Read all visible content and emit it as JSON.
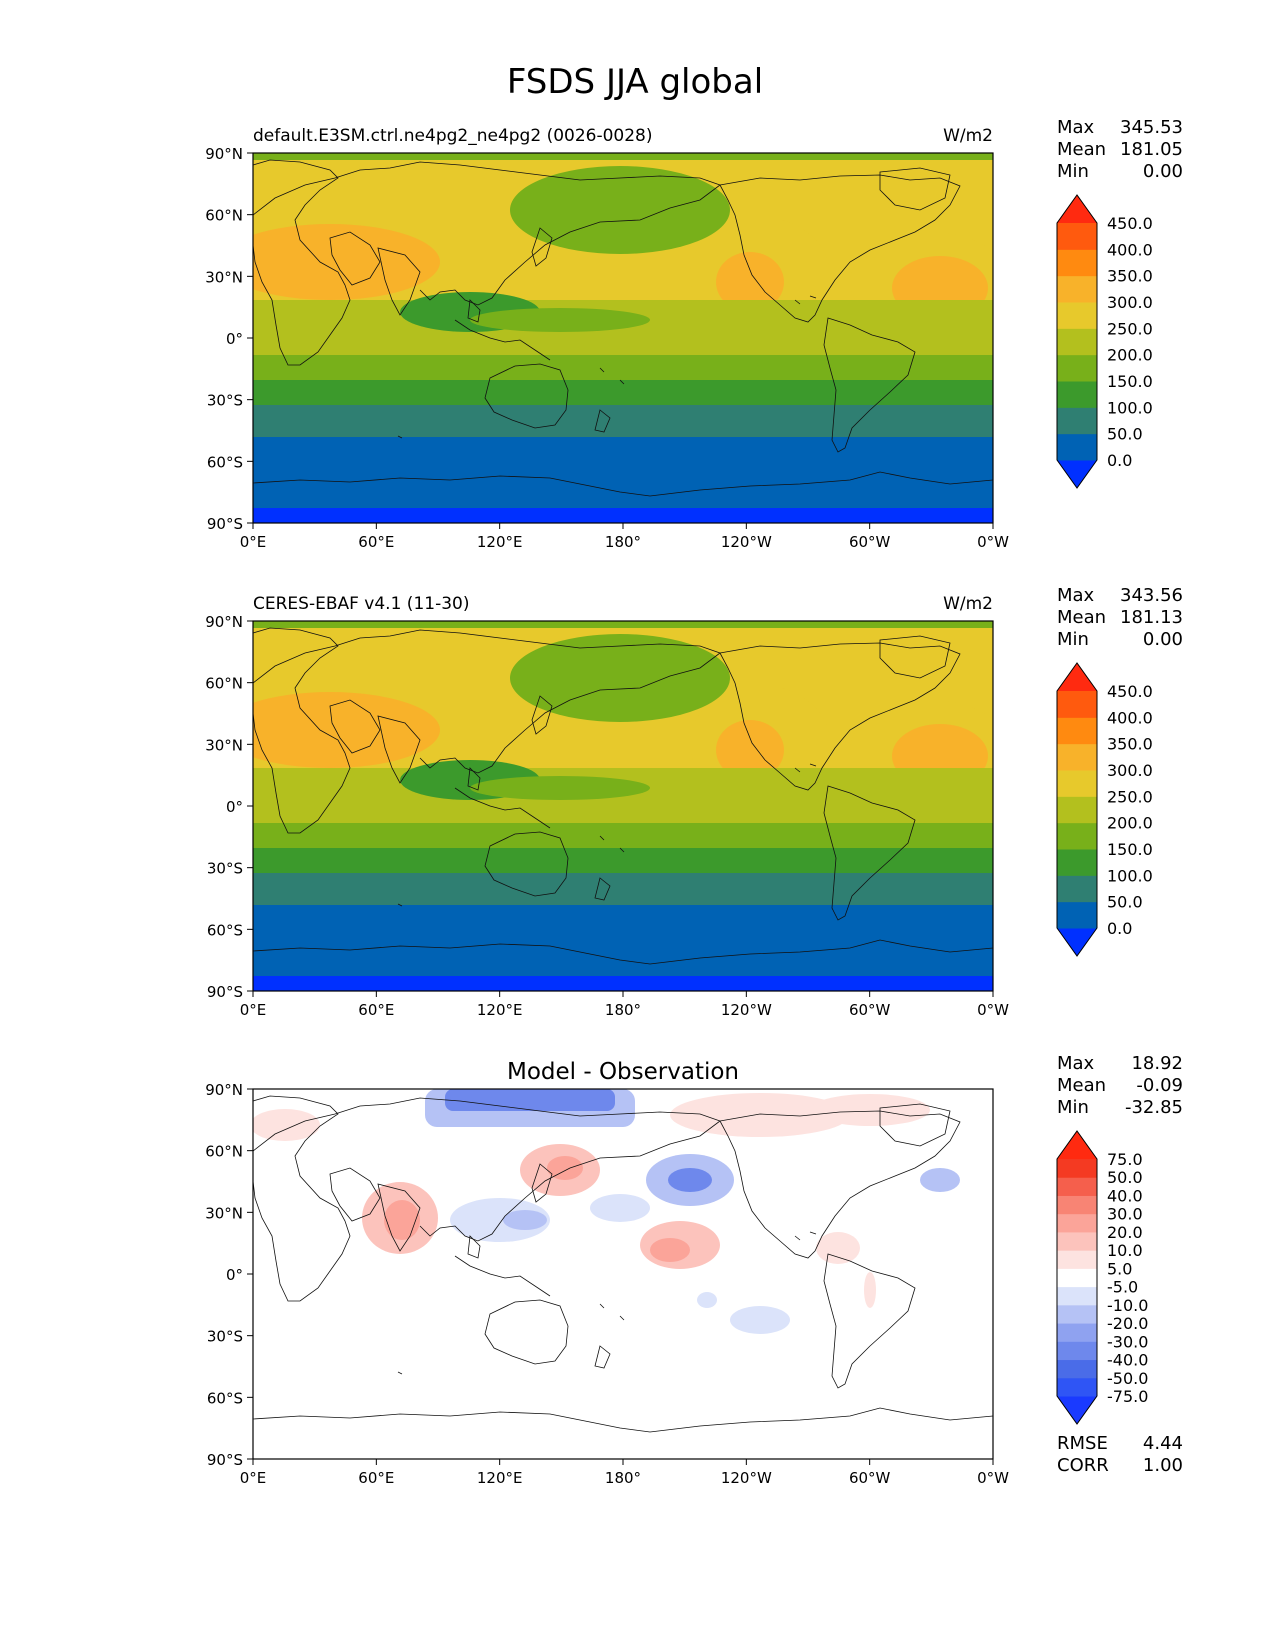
{
  "title": "FSDS JJA global",
  "panels": [
    {
      "id": "model",
      "left_title": "default.E3SM.ctrl.ne4pg2_ne4pg2 (0026-0028)",
      "center_title": "",
      "units": "W/m2",
      "stats": {
        "max_label": "Max",
        "max": "345.53",
        "mean_label": "Mean",
        "mean": "181.05",
        "min_label": "Min",
        "min": "0.00"
      },
      "colorbar": {
        "ticks": [
          "0.0",
          "50.0",
          "100.0",
          "150.0",
          "200.0",
          "250.0",
          "300.0",
          "350.0",
          "400.0",
          "450.0"
        ],
        "colors": [
          "#0030ff",
          "#0062b4",
          "#2f7f72",
          "#3c9a2c",
          "#78b01a",
          "#b3c01e",
          "#e7c92c",
          "#f8b22a",
          "#ff8a10",
          "#ff5a0e",
          "#ff2a10"
        ]
      }
    },
    {
      "id": "obs",
      "left_title": "CERES-EBAF v4.1 (11-30)",
      "center_title": "",
      "units": "W/m2",
      "stats": {
        "max_label": "Max",
        "max": "343.56",
        "mean_label": "Mean",
        "mean": "181.13",
        "min_label": "Min",
        "min": "0.00"
      },
      "colorbar": {
        "ticks": [
          "0.0",
          "50.0",
          "100.0",
          "150.0",
          "200.0",
          "250.0",
          "300.0",
          "350.0",
          "400.0",
          "450.0"
        ],
        "colors": [
          "#0030ff",
          "#0062b4",
          "#2f7f72",
          "#3c9a2c",
          "#78b01a",
          "#b3c01e",
          "#e7c92c",
          "#f8b22a",
          "#ff8a10",
          "#ff5a0e",
          "#ff2a10"
        ]
      }
    },
    {
      "id": "diff",
      "left_title": "",
      "center_title": "Model - Observation",
      "units": "",
      "stats": {
        "max_label": "Max",
        "max": "18.92",
        "mean_label": "Mean",
        "mean": "-0.09",
        "min_label": "Min",
        "min": "-32.85"
      },
      "colorbar": {
        "ticks": [
          "-75.0",
          "-50.0",
          "-40.0",
          "-30.0",
          "-20.0",
          "-10.0",
          "-5.0",
          "5.0",
          "10.0",
          "20.0",
          "30.0",
          "40.0",
          "50.0",
          "75.0"
        ],
        "colors": [
          "#1a3aff",
          "#2f55f5",
          "#4a6ce8",
          "#6e88ec",
          "#8fa2f0",
          "#b5c2f5",
          "#dbe3fa",
          "#ffffff",
          "#fde3e0",
          "#fcc3bc",
          "#fba499",
          "#f88474",
          "#f55f4c",
          "#f43a22",
          "#ff2a10"
        ]
      },
      "error_stats": {
        "rmse_label": "RMSE",
        "rmse": "4.44",
        "corr_label": "CORR",
        "corr": "1.00"
      }
    }
  ],
  "lat_ticks": [
    "90°N",
    "60°N",
    "30°N",
    "0°",
    "30°S",
    "60°S",
    "90°S"
  ],
  "lon_ticks": [
    "0°E",
    "60°E",
    "120°E",
    "180°",
    "120°W",
    "60°W",
    "0°W"
  ]
}
